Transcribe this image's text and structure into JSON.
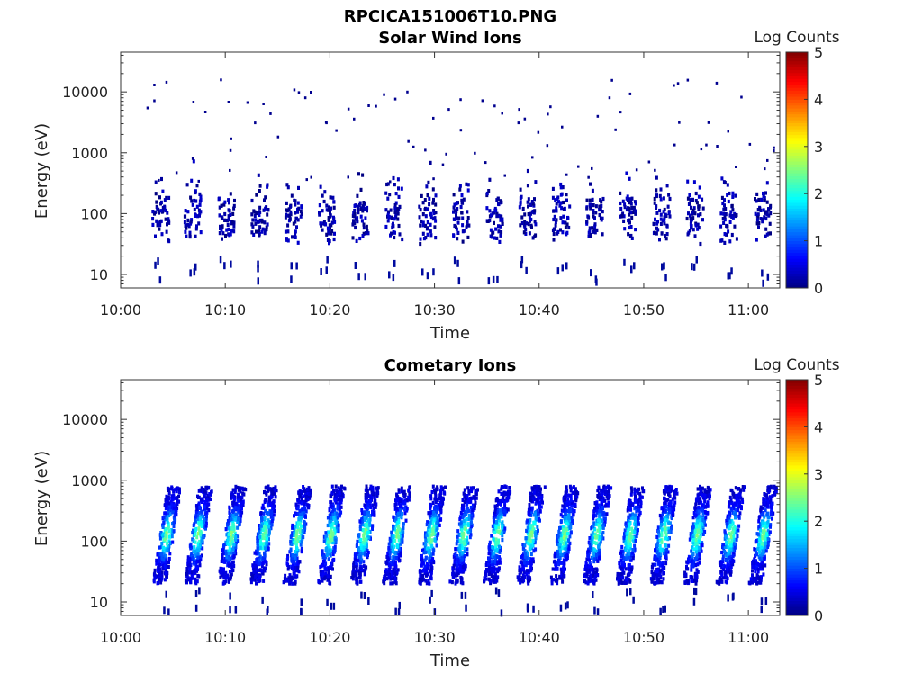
{
  "figure": {
    "title": "RPCICA151006T10.PNG"
  },
  "chart_data": [
    {
      "type": "heatmap",
      "title": "Solar Wind Ions",
      "xlabel": "Time",
      "ylabel": "Energy (eV)",
      "x_ticks": [
        "10:00",
        "10:10",
        "10:20",
        "10:30",
        "10:40",
        "10:50",
        "11:00"
      ],
      "y_ticks": [
        "10",
        "100",
        "1000",
        "10000"
      ],
      "y_scale": "log",
      "xlim": [
        "10:00",
        "11:03"
      ],
      "ylim": [
        6,
        45000
      ],
      "colorbar": {
        "label": "Log Counts",
        "ticks": [
          "0",
          "1",
          "2",
          "3",
          "4",
          "5"
        ],
        "range": [
          0,
          5
        ],
        "colormap": "jet"
      },
      "description_values": {
        "scan_times_min": [
          3.7,
          6.8,
          10.0,
          13.2,
          16.4,
          19.6,
          22.8,
          26.0,
          29.2,
          32.4,
          35.6,
          38.8,
          42.0,
          45.2,
          48.4,
          51.6,
          54.8,
          58.0,
          61.2
        ],
        "core_energy_range_eV": [
          40,
          400
        ],
        "max_log_counts": 0.5
      }
    },
    {
      "type": "heatmap",
      "title": "Cometary Ions",
      "xlabel": "Time",
      "ylabel": "Energy (eV)",
      "x_ticks": [
        "10:00",
        "10:10",
        "10:20",
        "10:30",
        "10:40",
        "10:50",
        "11:00"
      ],
      "y_ticks": [
        "10",
        "100",
        "1000",
        "10000"
      ],
      "y_scale": "log",
      "xlim": [
        "10:00",
        "11:03"
      ],
      "ylim": [
        6,
        45000
      ],
      "colorbar": {
        "label": "Log Counts",
        "ticks": [
          "0",
          "1",
          "2",
          "3",
          "4",
          "5"
        ],
        "range": [
          0,
          5
        ],
        "colormap": "jet"
      },
      "description_values": {
        "scan_times_min": [
          4.3,
          7.3,
          10.5,
          13.6,
          16.8,
          20.0,
          23.2,
          26.3,
          29.6,
          32.7,
          35.9,
          39.1,
          42.3,
          45.4,
          48.6,
          51.8,
          55.0,
          58.2,
          61.3
        ],
        "core_energy_range_eV": [
          20,
          800
        ],
        "peak_log_counts": 2.3
      }
    }
  ]
}
